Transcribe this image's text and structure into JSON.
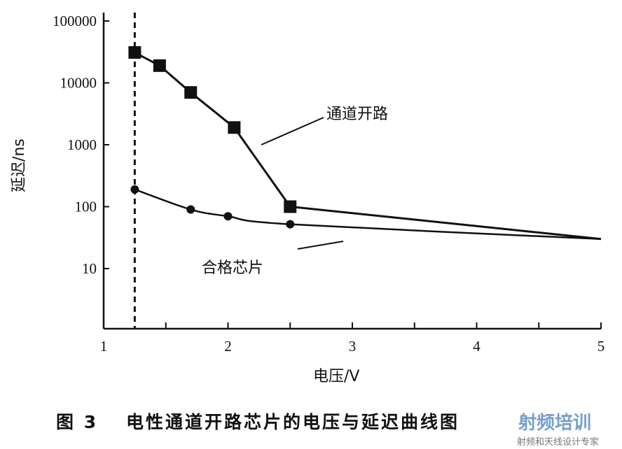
{
  "chart_data": {
    "type": "line",
    "title": "",
    "xlabel": "电压/V",
    "ylabel": "延迟/ns",
    "xlim": [
      1,
      5
    ],
    "ylim": [
      1,
      100000
    ],
    "yscale": "log",
    "x_ticks": [
      "1",
      "2",
      "3",
      "4",
      "5"
    ],
    "y_ticks": [
      "100000",
      "10000",
      "1000",
      "100",
      "10"
    ],
    "threshold_voltage": 1.25,
    "series": [
      {
        "name": "通道开路",
        "marker": "square",
        "x": [
          1.25,
          1.45,
          1.7,
          2.05,
          2.5
        ],
        "y": [
          31000,
          19000,
          7000,
          1900,
          100
        ],
        "line_end": {
          "x": 5,
          "y": 30
        }
      },
      {
        "name": "合格芯片",
        "marker": "circle",
        "x": [
          1.25,
          1.7,
          2.0,
          2.5
        ],
        "y": [
          190,
          90,
          70,
          52
        ],
        "line_end": {
          "x": 5,
          "y": 30
        }
      }
    ],
    "annotations": [
      "通道开路",
      "合格芯片"
    ]
  },
  "caption": {
    "label": "图 3",
    "text": "电性通道开路芯片的电压与延迟曲线图"
  },
  "watermark": {
    "title": "射频培训",
    "subtitle": "射频和天线设计专家",
    "colors": [
      "#c0392b",
      "#4a7fb5"
    ]
  }
}
